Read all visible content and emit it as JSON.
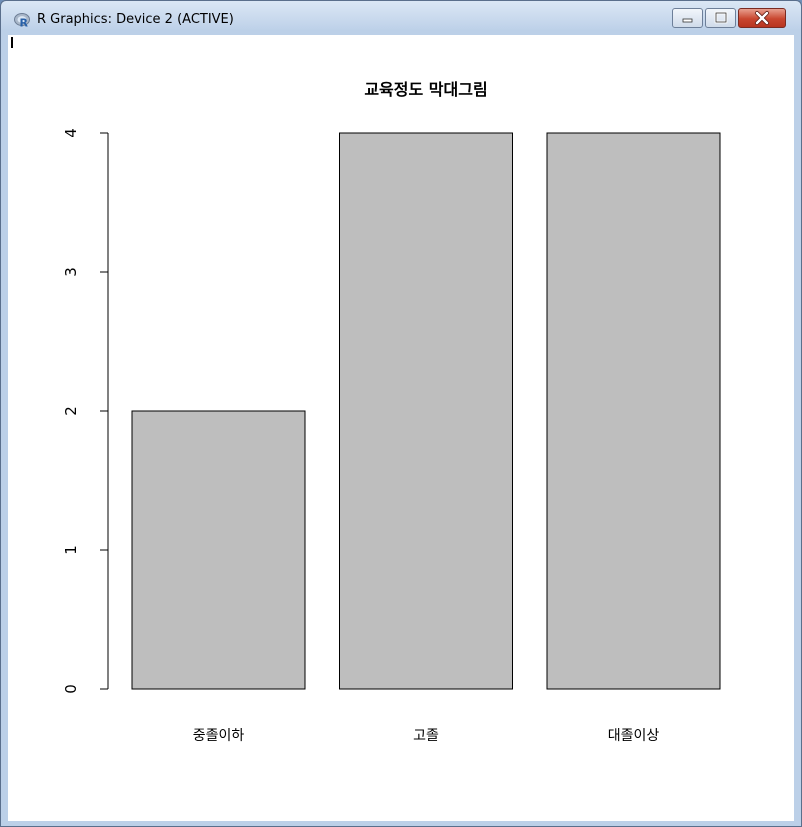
{
  "window": {
    "title": "R Graphics: Device 2 (ACTIVE)"
  },
  "icons": {
    "app": "r-logo-icon",
    "minimize": "minimize-icon",
    "maximize": "maximize-icon",
    "close": "close-icon"
  },
  "colors": {
    "bar_fill": "#bebebe",
    "bar_stroke": "#000000",
    "close_button": "#c8462f"
  },
  "chart_data": {
    "type": "bar",
    "title": "교육정도 막대그림",
    "categories": [
      "중졸이하",
      "고졸",
      "대졸이상"
    ],
    "values": [
      2,
      4,
      4
    ],
    "xlabel": "",
    "ylabel": "",
    "ylim": [
      0,
      4
    ],
    "yticks": [
      "0",
      "1",
      "2",
      "3",
      "4"
    ],
    "grid": false,
    "legend": "none"
  }
}
